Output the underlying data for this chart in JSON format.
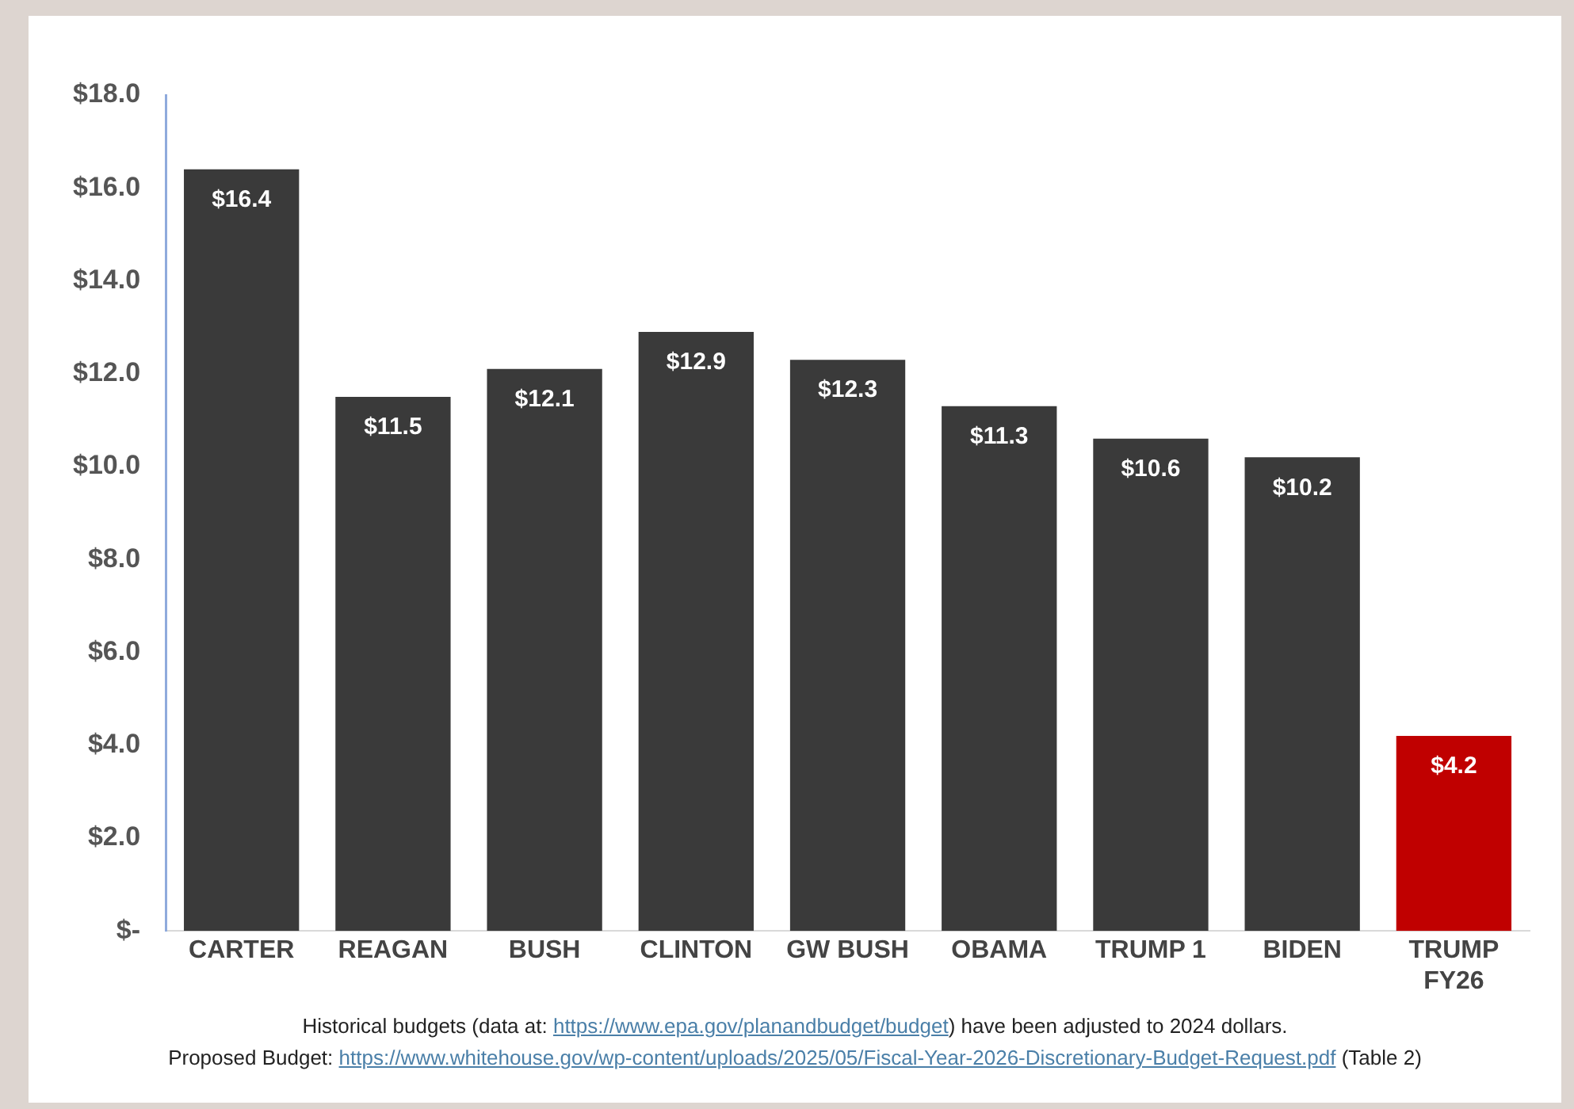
{
  "chart_data": {
    "type": "bar",
    "categories": [
      "CARTER",
      "REAGAN",
      "BUSH",
      "CLINTON",
      "GW BUSH",
      "OBAMA",
      "TRUMP 1",
      "BIDEN",
      "TRUMP\nFY26"
    ],
    "values": [
      16.4,
      11.5,
      12.1,
      12.9,
      12.3,
      11.3,
      10.6,
      10.2,
      4.2
    ],
    "value_labels": [
      "$16.4",
      "$11.5",
      "$12.1",
      "$12.9",
      "$12.3",
      "$11.3",
      "$10.6",
      "$10.2",
      "$4.2"
    ],
    "colors": [
      "#3a3a3a",
      "#3a3a3a",
      "#3a3a3a",
      "#3a3a3a",
      "#3a3a3a",
      "#3a3a3a",
      "#3a3a3a",
      "#3a3a3a",
      "#c00000"
    ],
    "ylim": [
      0,
      18
    ],
    "yticks": [
      {
        "value": 0,
        "label": "$-"
      },
      {
        "value": 2,
        "label": "$2.0"
      },
      {
        "value": 4,
        "label": "$4.0"
      },
      {
        "value": 6,
        "label": "$6.0"
      },
      {
        "value": 8,
        "label": "$8.0"
      },
      {
        "value": 10,
        "label": "$10.0"
      },
      {
        "value": 12,
        "label": "$12.0"
      },
      {
        "value": 14,
        "label": "$14.0"
      },
      {
        "value": 16,
        "label": "$16.0"
      },
      {
        "value": 18,
        "label": "$18.0"
      }
    ],
    "grid": false,
    "legend": false,
    "annotations": [
      "Historical budgets (data at: https://www.epa.gov/planandbudget/budget) have been adjusted to 2024 dollars.",
      "Proposed Budget: https://www.whitehouse.gov/wp-content/uploads/2025/05/Fiscal-Year-2026-Discretionary-Budget-Request.pdf (Table 2)"
    ]
  }
}
